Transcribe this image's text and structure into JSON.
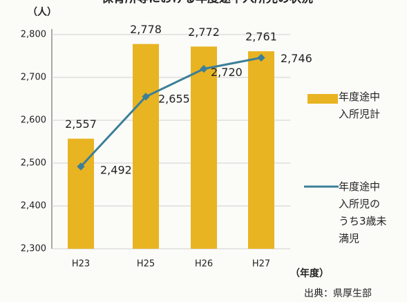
{
  "chart_data": {
    "type": "bar_line",
    "title": "保育所等における年度途中入所児の状況",
    "y_unit": "（人）",
    "x_unit": "（年度）",
    "source": "出典：県厚生部",
    "categories": [
      "H23",
      "H25",
      "H26",
      "H27"
    ],
    "series": [
      {
        "name": "年度途中入所児計",
        "type": "bar",
        "color": "#e8b422",
        "values": [
          2557,
          2778,
          2772,
          2761
        ],
        "value_labels": [
          "2,557",
          "2,778",
          "2,772",
          "2,761"
        ]
      },
      {
        "name": "年度途中入所児のうち3歳未満児",
        "type": "line",
        "color": "#3b7f98",
        "values": [
          2492,
          2655,
          2720,
          2746
        ],
        "value_labels": [
          "2,492",
          "2,655",
          "2,720",
          "2,746"
        ]
      }
    ],
    "ylim": [
      2300,
      2800
    ],
    "yticks": [
      {
        "value": 2300,
        "label": "2,300"
      },
      {
        "value": 2400,
        "label": "2,400"
      },
      {
        "value": 2500,
        "label": "2,500"
      },
      {
        "value": 2600,
        "label": "2,600"
      },
      {
        "value": 2700,
        "label": "2,700"
      },
      {
        "value": 2800,
        "label": "2,800"
      }
    ]
  }
}
